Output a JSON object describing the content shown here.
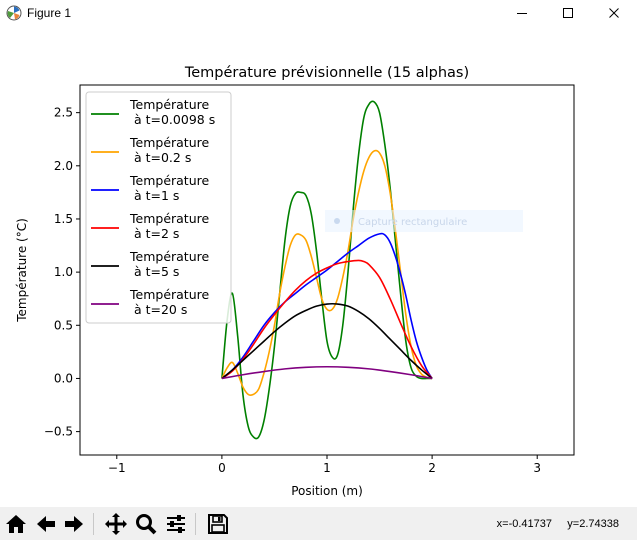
{
  "window": {
    "title": "Figure 1"
  },
  "toolbar": {
    "coords_text": "x=-0.41737     y=2.74338"
  },
  "overlay": {
    "text": "Capture rectangulaire"
  },
  "icons": [
    "home-icon",
    "back-arrow-icon",
    "forward-arrow-icon",
    "pan-icon",
    "zoom-icon",
    "configure-subplots-icon",
    "save-icon"
  ],
  "chart_data": {
    "type": "line",
    "title": "Température prévisionnelle (15 alphas)",
    "xlabel": "Position (m)",
    "ylabel": "Température (°C)",
    "xlim": [
      -1.35,
      3.35
    ],
    "ylim": [
      -0.72,
      2.76
    ],
    "xticks": [
      -1,
      0,
      1,
      2,
      3
    ],
    "yticks": [
      -0.5,
      0.0,
      0.5,
      1.0,
      1.5,
      2.0,
      2.5
    ],
    "grid": false,
    "legend_position": "top-left",
    "series": [
      {
        "name": "Température\n à t=0.0098 s",
        "color": "#008000",
        "x": [
          0,
          0.05,
          0.1,
          0.15,
          0.2,
          0.25,
          0.3,
          0.35,
          0.4,
          0.45,
          0.5,
          0.55,
          0.6,
          0.65,
          0.7,
          0.75,
          0.8,
          0.85,
          0.9,
          0.95,
          1.0,
          1.05,
          1.1,
          1.15,
          1.2,
          1.25,
          1.3,
          1.35,
          1.4,
          1.45,
          1.5,
          1.55,
          1.6,
          1.65,
          1.7,
          1.75,
          1.8,
          1.85,
          1.9,
          1.95,
          2.0
        ],
        "y": [
          0,
          0.55,
          0.8,
          0.4,
          -0.15,
          -0.45,
          -0.55,
          -0.55,
          -0.4,
          -0.1,
          0.3,
          0.8,
          1.3,
          1.62,
          1.74,
          1.75,
          1.72,
          1.55,
          1.2,
          0.75,
          0.35,
          0.2,
          0.22,
          0.5,
          1.0,
          1.6,
          2.1,
          2.45,
          2.58,
          2.6,
          2.5,
          2.2,
          1.8,
          1.3,
          0.8,
          0.35,
          0.1,
          0.02,
          0.0,
          0.0,
          0.0
        ]
      },
      {
        "name": "Température\n à t=0.2 s",
        "color": "#ffa500",
        "x": [
          0,
          0.05,
          0.1,
          0.15,
          0.2,
          0.25,
          0.3,
          0.35,
          0.4,
          0.45,
          0.5,
          0.55,
          0.6,
          0.65,
          0.7,
          0.75,
          0.8,
          0.85,
          0.9,
          0.95,
          1.0,
          1.05,
          1.1,
          1.15,
          1.2,
          1.25,
          1.3,
          1.35,
          1.4,
          1.45,
          1.5,
          1.55,
          1.6,
          1.65,
          1.7,
          1.75,
          1.8,
          1.85,
          1.9,
          1.95,
          2.0
        ],
        "y": [
          0,
          0.1,
          0.15,
          0.05,
          -0.08,
          -0.15,
          -0.15,
          -0.1,
          0.05,
          0.25,
          0.5,
          0.8,
          1.05,
          1.25,
          1.35,
          1.35,
          1.3,
          1.15,
          0.95,
          0.75,
          0.65,
          0.65,
          0.75,
          0.95,
          1.2,
          1.5,
          1.75,
          1.95,
          2.08,
          2.14,
          2.12,
          2.0,
          1.75,
          1.4,
          1.0,
          0.6,
          0.3,
          0.12,
          0.04,
          0.01,
          0.0
        ]
      },
      {
        "name": "Température\n à t=1 s",
        "color": "#0000ff",
        "x": [
          0,
          0.1,
          0.2,
          0.3,
          0.4,
          0.5,
          0.6,
          0.7,
          0.8,
          0.9,
          1.0,
          1.1,
          1.2,
          1.3,
          1.4,
          1.5,
          1.55,
          1.6,
          1.65,
          1.7,
          1.75,
          1.8,
          1.85,
          1.9,
          1.95,
          2.0
        ],
        "y": [
          0,
          0.08,
          0.2,
          0.35,
          0.5,
          0.62,
          0.72,
          0.8,
          0.88,
          0.95,
          1.02,
          1.1,
          1.18,
          1.25,
          1.32,
          1.36,
          1.35,
          1.28,
          1.15,
          0.98,
          0.78,
          0.55,
          0.35,
          0.2,
          0.08,
          0.0
        ]
      },
      {
        "name": "Température\n à t=2 s",
        "color": "#ff0000",
        "x": [
          0,
          0.1,
          0.2,
          0.3,
          0.4,
          0.5,
          0.6,
          0.7,
          0.8,
          0.9,
          1.0,
          1.1,
          1.2,
          1.3,
          1.35,
          1.4,
          1.5,
          1.6,
          1.7,
          1.8,
          1.9,
          2.0
        ],
        "y": [
          0,
          0.07,
          0.18,
          0.32,
          0.47,
          0.6,
          0.72,
          0.83,
          0.92,
          0.99,
          1.04,
          1.08,
          1.1,
          1.11,
          1.1,
          1.07,
          0.95,
          0.75,
          0.52,
          0.3,
          0.12,
          0.0
        ]
      },
      {
        "name": "Température\n à t=5 s",
        "color": "#000000",
        "x": [
          0,
          0.1,
          0.2,
          0.3,
          0.4,
          0.5,
          0.6,
          0.7,
          0.8,
          0.9,
          1.0,
          1.1,
          1.2,
          1.3,
          1.4,
          1.5,
          1.6,
          1.7,
          1.8,
          1.9,
          2.0
        ],
        "y": [
          0,
          0.08,
          0.17,
          0.26,
          0.35,
          0.44,
          0.52,
          0.59,
          0.64,
          0.68,
          0.7,
          0.7,
          0.68,
          0.63,
          0.56,
          0.47,
          0.37,
          0.27,
          0.17,
          0.08,
          0.0
        ]
      },
      {
        "name": "Température\n à t=20 s",
        "color": "#800080",
        "x": [
          0,
          0.2,
          0.4,
          0.6,
          0.8,
          1.0,
          1.2,
          1.4,
          1.6,
          1.8,
          2.0
        ],
        "y": [
          0,
          0.035,
          0.065,
          0.09,
          0.105,
          0.11,
          0.105,
          0.09,
          0.065,
          0.035,
          0.0
        ]
      }
    ]
  }
}
